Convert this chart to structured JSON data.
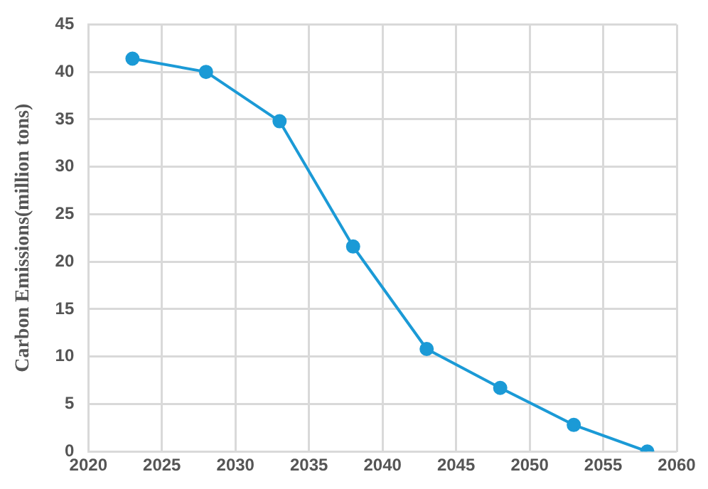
{
  "chart_data": {
    "type": "line",
    "ylabel": "Carbon Emissions(million tons)",
    "x": [
      2023,
      2028,
      2033,
      2038,
      2043,
      2048,
      2053,
      2058
    ],
    "series": [
      {
        "color": "#1b9ad6",
        "values": [
          41.4,
          40,
          34.8,
          21.6,
          10.8,
          6.7,
          2.8,
          0
        ]
      }
    ],
    "xlim": [
      2020,
      2060
    ],
    "xticks": [
      2020,
      2025,
      2030,
      2035,
      2040,
      2045,
      2050,
      2055,
      2060
    ],
    "ylim": [
      0,
      45
    ],
    "yticks": [
      0,
      5,
      10,
      15,
      20,
      25,
      30,
      35,
      40,
      45
    ],
    "grid": true,
    "legend": false,
    "marker": "circle",
    "line_style": "solid"
  }
}
